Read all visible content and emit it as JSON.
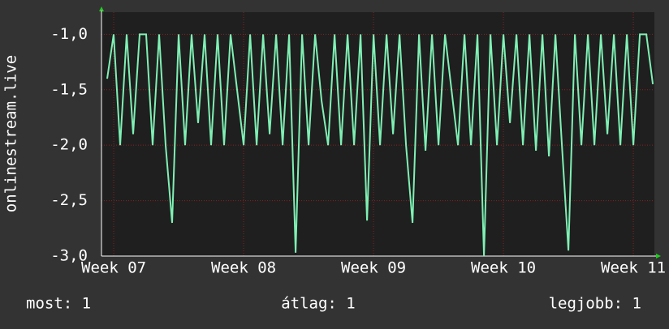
{
  "chart_data": {
    "type": "line",
    "y_label": "onlinestream.live",
    "xlim": [
      6.906,
      11.162
    ],
    "xticks": [
      {
        "value": 7,
        "label": "Week 07"
      },
      {
        "value": 8,
        "label": "Week 08"
      },
      {
        "value": 9,
        "label": "Week 09"
      },
      {
        "value": 10,
        "label": "Week 10"
      },
      {
        "value": 11,
        "label": "Week 11"
      }
    ],
    "ylim": [
      -3,
      -0.8
    ],
    "yticks": [
      {
        "value": -3,
        "label": "-3,0"
      },
      {
        "value": -2.5,
        "label": "-2,5"
      },
      {
        "value": -2,
        "label": "-2,0"
      },
      {
        "value": -1.5,
        "label": "-1,5"
      },
      {
        "value": -1,
        "label": "-1,0"
      }
    ],
    "grid": true,
    "series": [
      {
        "color": "#7ff0b4",
        "x": [
          6.95,
          7.0,
          7.05,
          7.1,
          7.15,
          7.2,
          7.25,
          7.3,
          7.35,
          7.4,
          7.45,
          7.5,
          7.55,
          7.6,
          7.65,
          7.7,
          7.75,
          7.8,
          7.85,
          7.9,
          7.95,
          8.0,
          8.05,
          8.1,
          8.15,
          8.2,
          8.25,
          8.3,
          8.35,
          8.4,
          8.45,
          8.5,
          8.55,
          8.6,
          8.65,
          8.7,
          8.75,
          8.8,
          8.85,
          8.9,
          8.95,
          9.0,
          9.05,
          9.1,
          9.15,
          9.2,
          9.25,
          9.3,
          9.35,
          9.4,
          9.45,
          9.5,
          9.55,
          9.6,
          9.65,
          9.7,
          9.75,
          9.8,
          9.85,
          9.9,
          9.95,
          10.0,
          10.05,
          10.1,
          10.15,
          10.2,
          10.25,
          10.3,
          10.35,
          10.4,
          10.45,
          10.5,
          10.55,
          10.6,
          10.65,
          10.7,
          10.75,
          10.8,
          10.85,
          10.9,
          10.95,
          11.0,
          11.05,
          11.1,
          11.15
        ],
        "values": [
          -1.4,
          -1,
          -2,
          -1,
          -1.9,
          -1,
          -1,
          -2,
          -1,
          -2,
          -2.7,
          -1,
          -2,
          -1,
          -1.8,
          -1,
          -2,
          -1,
          -2,
          -1,
          -1.5,
          -2,
          -1,
          -2,
          -1,
          -1.9,
          -1,
          -2,
          -1,
          -2.97,
          -1,
          -2,
          -1,
          -1.6,
          -2,
          -1,
          -2,
          -1,
          -2,
          -1,
          -2.68,
          -1,
          -2,
          -1,
          -1.9,
          -1,
          -2,
          -2.7,
          -1,
          -2.05,
          -1,
          -2,
          -1,
          -1.5,
          -2,
          -1,
          -2,
          -1,
          -3.0,
          -1,
          -2,
          -1,
          -1.8,
          -1,
          -2,
          -1,
          -2.05,
          -1,
          -2.1,
          -1,
          -2,
          -2.95,
          -1,
          -2,
          -1,
          -2,
          -1,
          -1.9,
          -1,
          -2,
          -1,
          -2,
          -1,
          -1,
          -1.45
        ]
      }
    ],
    "footer": [
      "most: 1",
      "átlag: 1",
      "legjobb: 1"
    ]
  }
}
